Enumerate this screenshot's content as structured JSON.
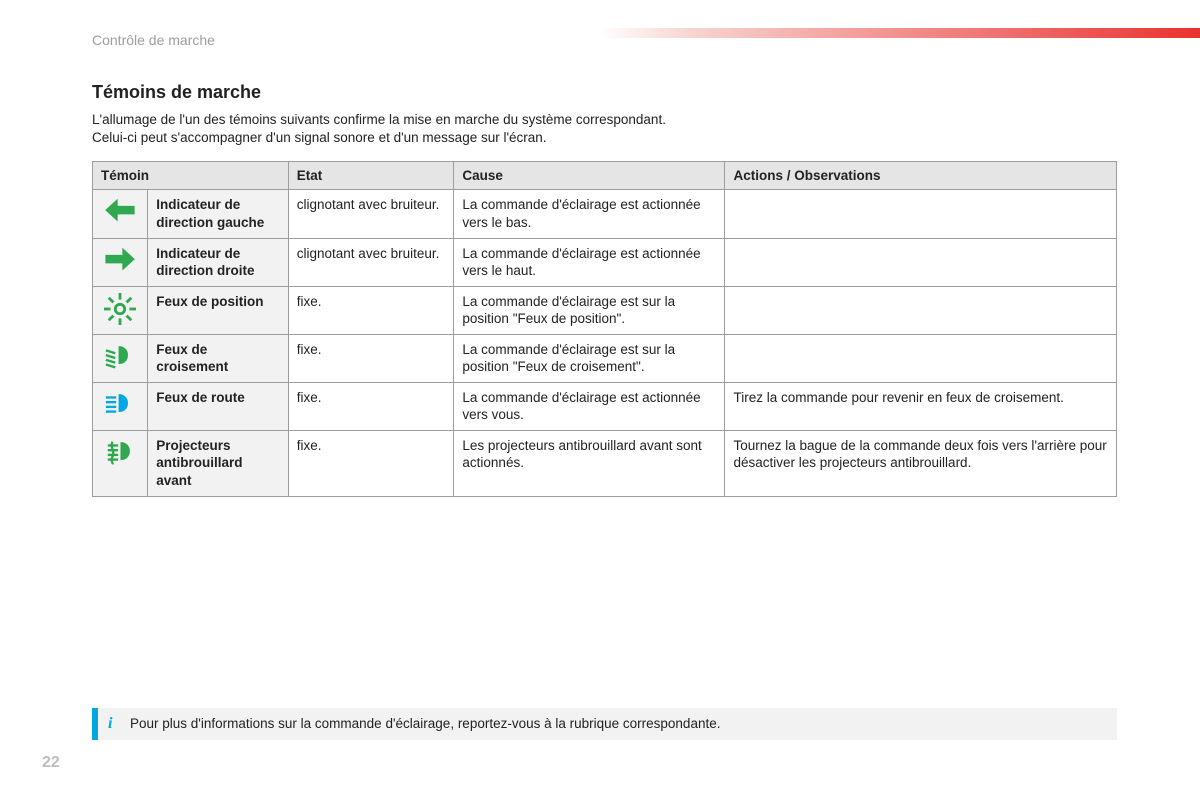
{
  "breadcrumb": "Contrôle de marche",
  "page_number": "22",
  "title": "Témoins de marche",
  "intro_line1": "L'allumage de l'un des témoins suivants confirme la mise en marche du système correspondant.",
  "intro_line2": "Celui-ci peut s'accompagner d'un signal sonore et d'un message sur l'écran.",
  "columns": {
    "c1": "Témoin",
    "c2": "Etat",
    "c3": "Cause",
    "c4": "Actions / Observations"
  },
  "colors": {
    "green": "#2fa84f",
    "blue": "#00a7e1",
    "header_bg": "#e5e5e5",
    "name_bg": "#f2f2f2",
    "border": "#9d9d9d",
    "breadcrumb": "#9d9d9d",
    "page_no": "#bdbdbd",
    "gradient_mid": "#f8d4d0",
    "gradient_end": "#e9312f"
  },
  "rows": [
    {
      "icon": "arrow-left",
      "icon_color": "#2fa84f",
      "name": "Indicateur de direction gauche",
      "etat": "clignotant avec bruiteur.",
      "cause": "La commande d'éclairage est actionnée vers le bas.",
      "actions": ""
    },
    {
      "icon": "arrow-right",
      "icon_color": "#2fa84f",
      "name": "Indicateur de direction droite",
      "etat": "clignotant avec bruiteur.",
      "cause": "La commande d'éclairage est actionnée vers le haut.",
      "actions": ""
    },
    {
      "icon": "position",
      "icon_color": "#2fa84f",
      "name": "Feux de position",
      "etat": "fixe.",
      "cause": "La commande d'éclairage est sur la position \"Feux de position\".",
      "actions": ""
    },
    {
      "icon": "lowbeam",
      "icon_color": "#2fa84f",
      "name": "Feux de croisement",
      "etat": "fixe.",
      "cause": "La commande d'éclairage est sur la position \"Feux de croisement\".",
      "actions": ""
    },
    {
      "icon": "highbeam",
      "icon_color": "#00a7e1",
      "name": "Feux de route",
      "etat": "fixe.",
      "cause": "La commande d'éclairage est actionnée vers vous.",
      "actions": "Tirez la commande pour revenir en feux de croisement."
    },
    {
      "icon": "frontfog",
      "icon_color": "#2fa84f",
      "name": "Projecteurs antibrouillard avant",
      "etat": "fixe.",
      "cause": "Les projecteurs antibrouillard avant sont actionnés.",
      "actions": "Tournez la bague de la commande deux fois vers l'arrière pour désactiver les projecteurs antibrouillard."
    }
  ],
  "info_text": "Pour plus d'informations sur la commande d'éclairage, reportez-vous à la rubrique correspondante.",
  "info_glyph": "i"
}
